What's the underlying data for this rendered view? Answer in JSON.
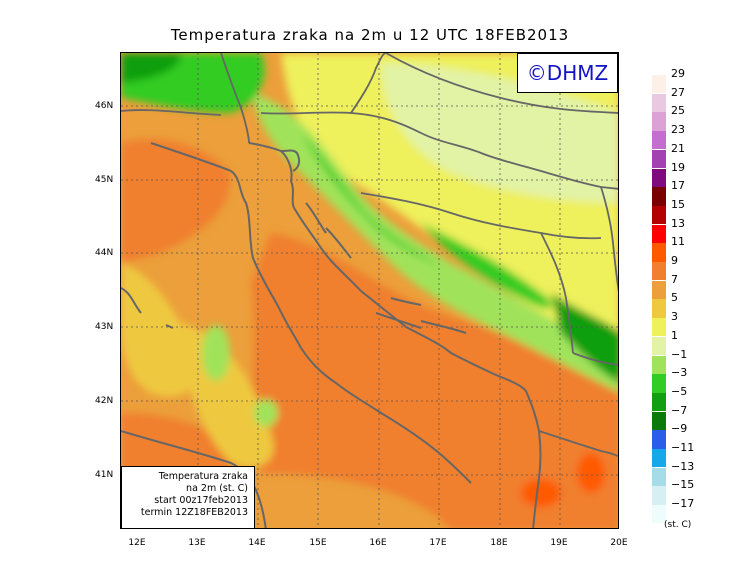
{
  "title": "Temperatura zraka na 2m u 12 UTC 18FEB2013",
  "badge": "©DHMZ",
  "info_box": {
    "line1": "Temperatura zraka",
    "line2": "na 2m (st. C)",
    "line3": "start 00z17feb2013",
    "line4": "termin 12Z18FEB2013"
  },
  "lat_labels": [
    "46N",
    "45N",
    "44N",
    "43N",
    "42N",
    "41N"
  ],
  "lon_labels": [
    "12E",
    "13E",
    "14E",
    "15E",
    "16E",
    "17E",
    "18E",
    "19E",
    "20E"
  ],
  "legend": {
    "labels": [
      "29",
      "27",
      "25",
      "23",
      "21",
      "19",
      "17",
      "15",
      "13",
      "11",
      "9",
      "7",
      "5",
      "3",
      "1",
      "−1",
      "−3",
      "−5",
      "−7",
      "−9",
      "−11",
      "−13",
      "−15",
      "−17"
    ],
    "colors": [
      "#fdf0e6",
      "#e8c9e1",
      "#dca1d5",
      "#c46fcf",
      "#a340b2",
      "#7f0a7e",
      "#7a0000",
      "#b30000",
      "#ff0000",
      "#ff5a00",
      "#f07f2e",
      "#ec9f3a",
      "#eec93f",
      "#eef05c",
      "#e2f3a6",
      "#a0e35a",
      "#33cc22",
      "#119f11",
      "#0a7a0a",
      "#2b5de8",
      "#16a8e8",
      "#a6dce8",
      "#d6eff2",
      "#eefcfc"
    ],
    "unit": "(st. C)"
  },
  "colors": {
    "coastline": "#666666",
    "gridline": "#555555",
    "badge_text": "#1212c8"
  }
}
